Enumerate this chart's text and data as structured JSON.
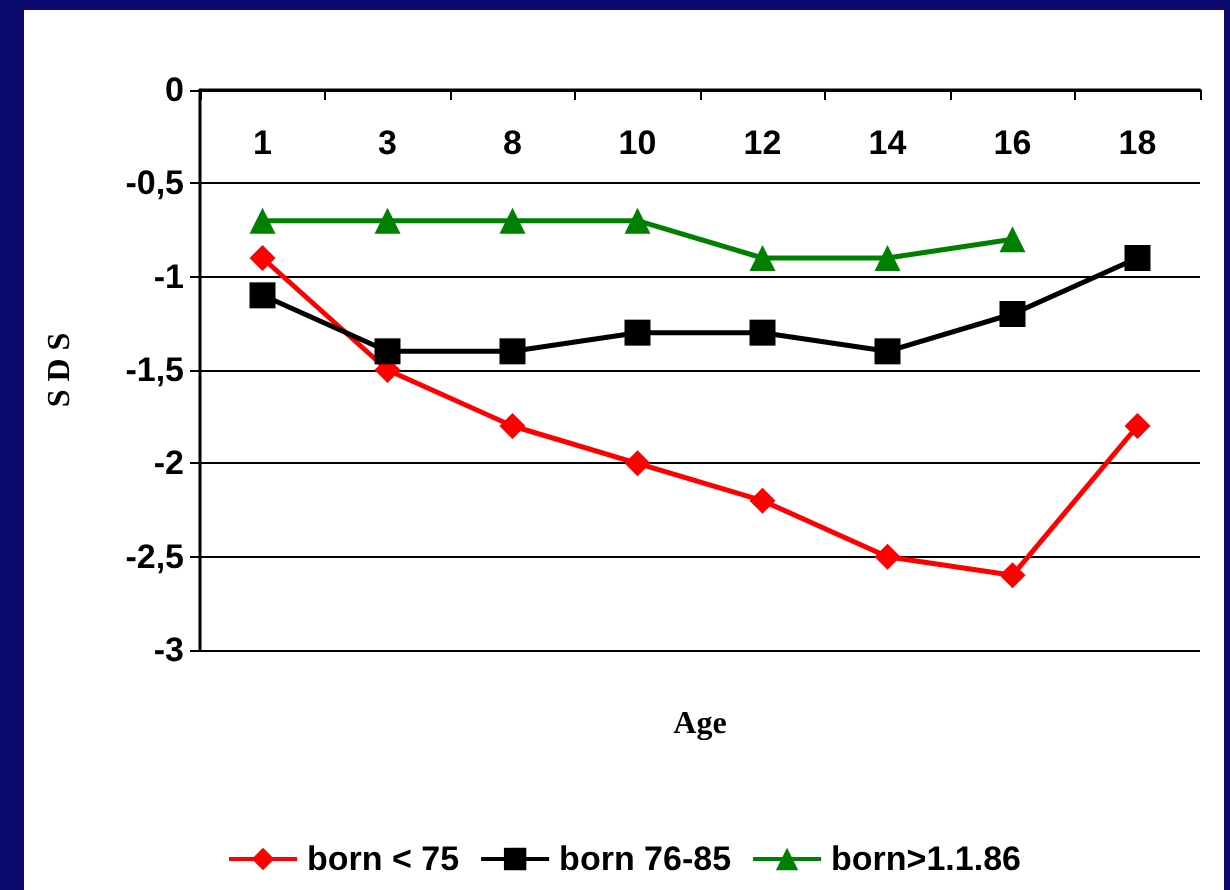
{
  "chart_data": {
    "type": "line",
    "xlabel": "Age",
    "ylabel": "S D S",
    "categories": [
      "1",
      "3",
      "8",
      "10",
      "12",
      "14",
      "16",
      "18"
    ],
    "series": [
      {
        "name": "born < 75",
        "color": "#ff0000",
        "marker": "diamond",
        "values": [
          -0.9,
          -1.5,
          -1.8,
          -2,
          -2.2,
          -2.5,
          -2.6,
          -1.8
        ]
      },
      {
        "name": "born 76-85",
        "color": "#000000",
        "marker": "square",
        "values": [
          -1.1,
          -1.4,
          -1.4,
          -1.3,
          -1.3,
          -1.4,
          -1.2,
          -0.9
        ]
      },
      {
        "name": "born>1.1.86",
        "color": "#008000",
        "marker": "triangle",
        "values": [
          -0.7,
          -0.7,
          -0.7,
          -0.7,
          -0.9,
          -0.9,
          -0.8,
          null
        ]
      }
    ],
    "ylim": [
      -3,
      0
    ],
    "yticks": [
      {
        "value": -3,
        "label": "-3"
      },
      {
        "value": -2.5,
        "label": "-2,5"
      },
      {
        "value": -2,
        "label": "-2"
      },
      {
        "value": -1.5,
        "label": "-1,5"
      },
      {
        "value": -1,
        "label": "-1"
      },
      {
        "value": -0.5,
        "label": "-0,5"
      },
      {
        "value": 0,
        "label": "0"
      }
    ],
    "grid": "y",
    "legend": "bottom"
  }
}
